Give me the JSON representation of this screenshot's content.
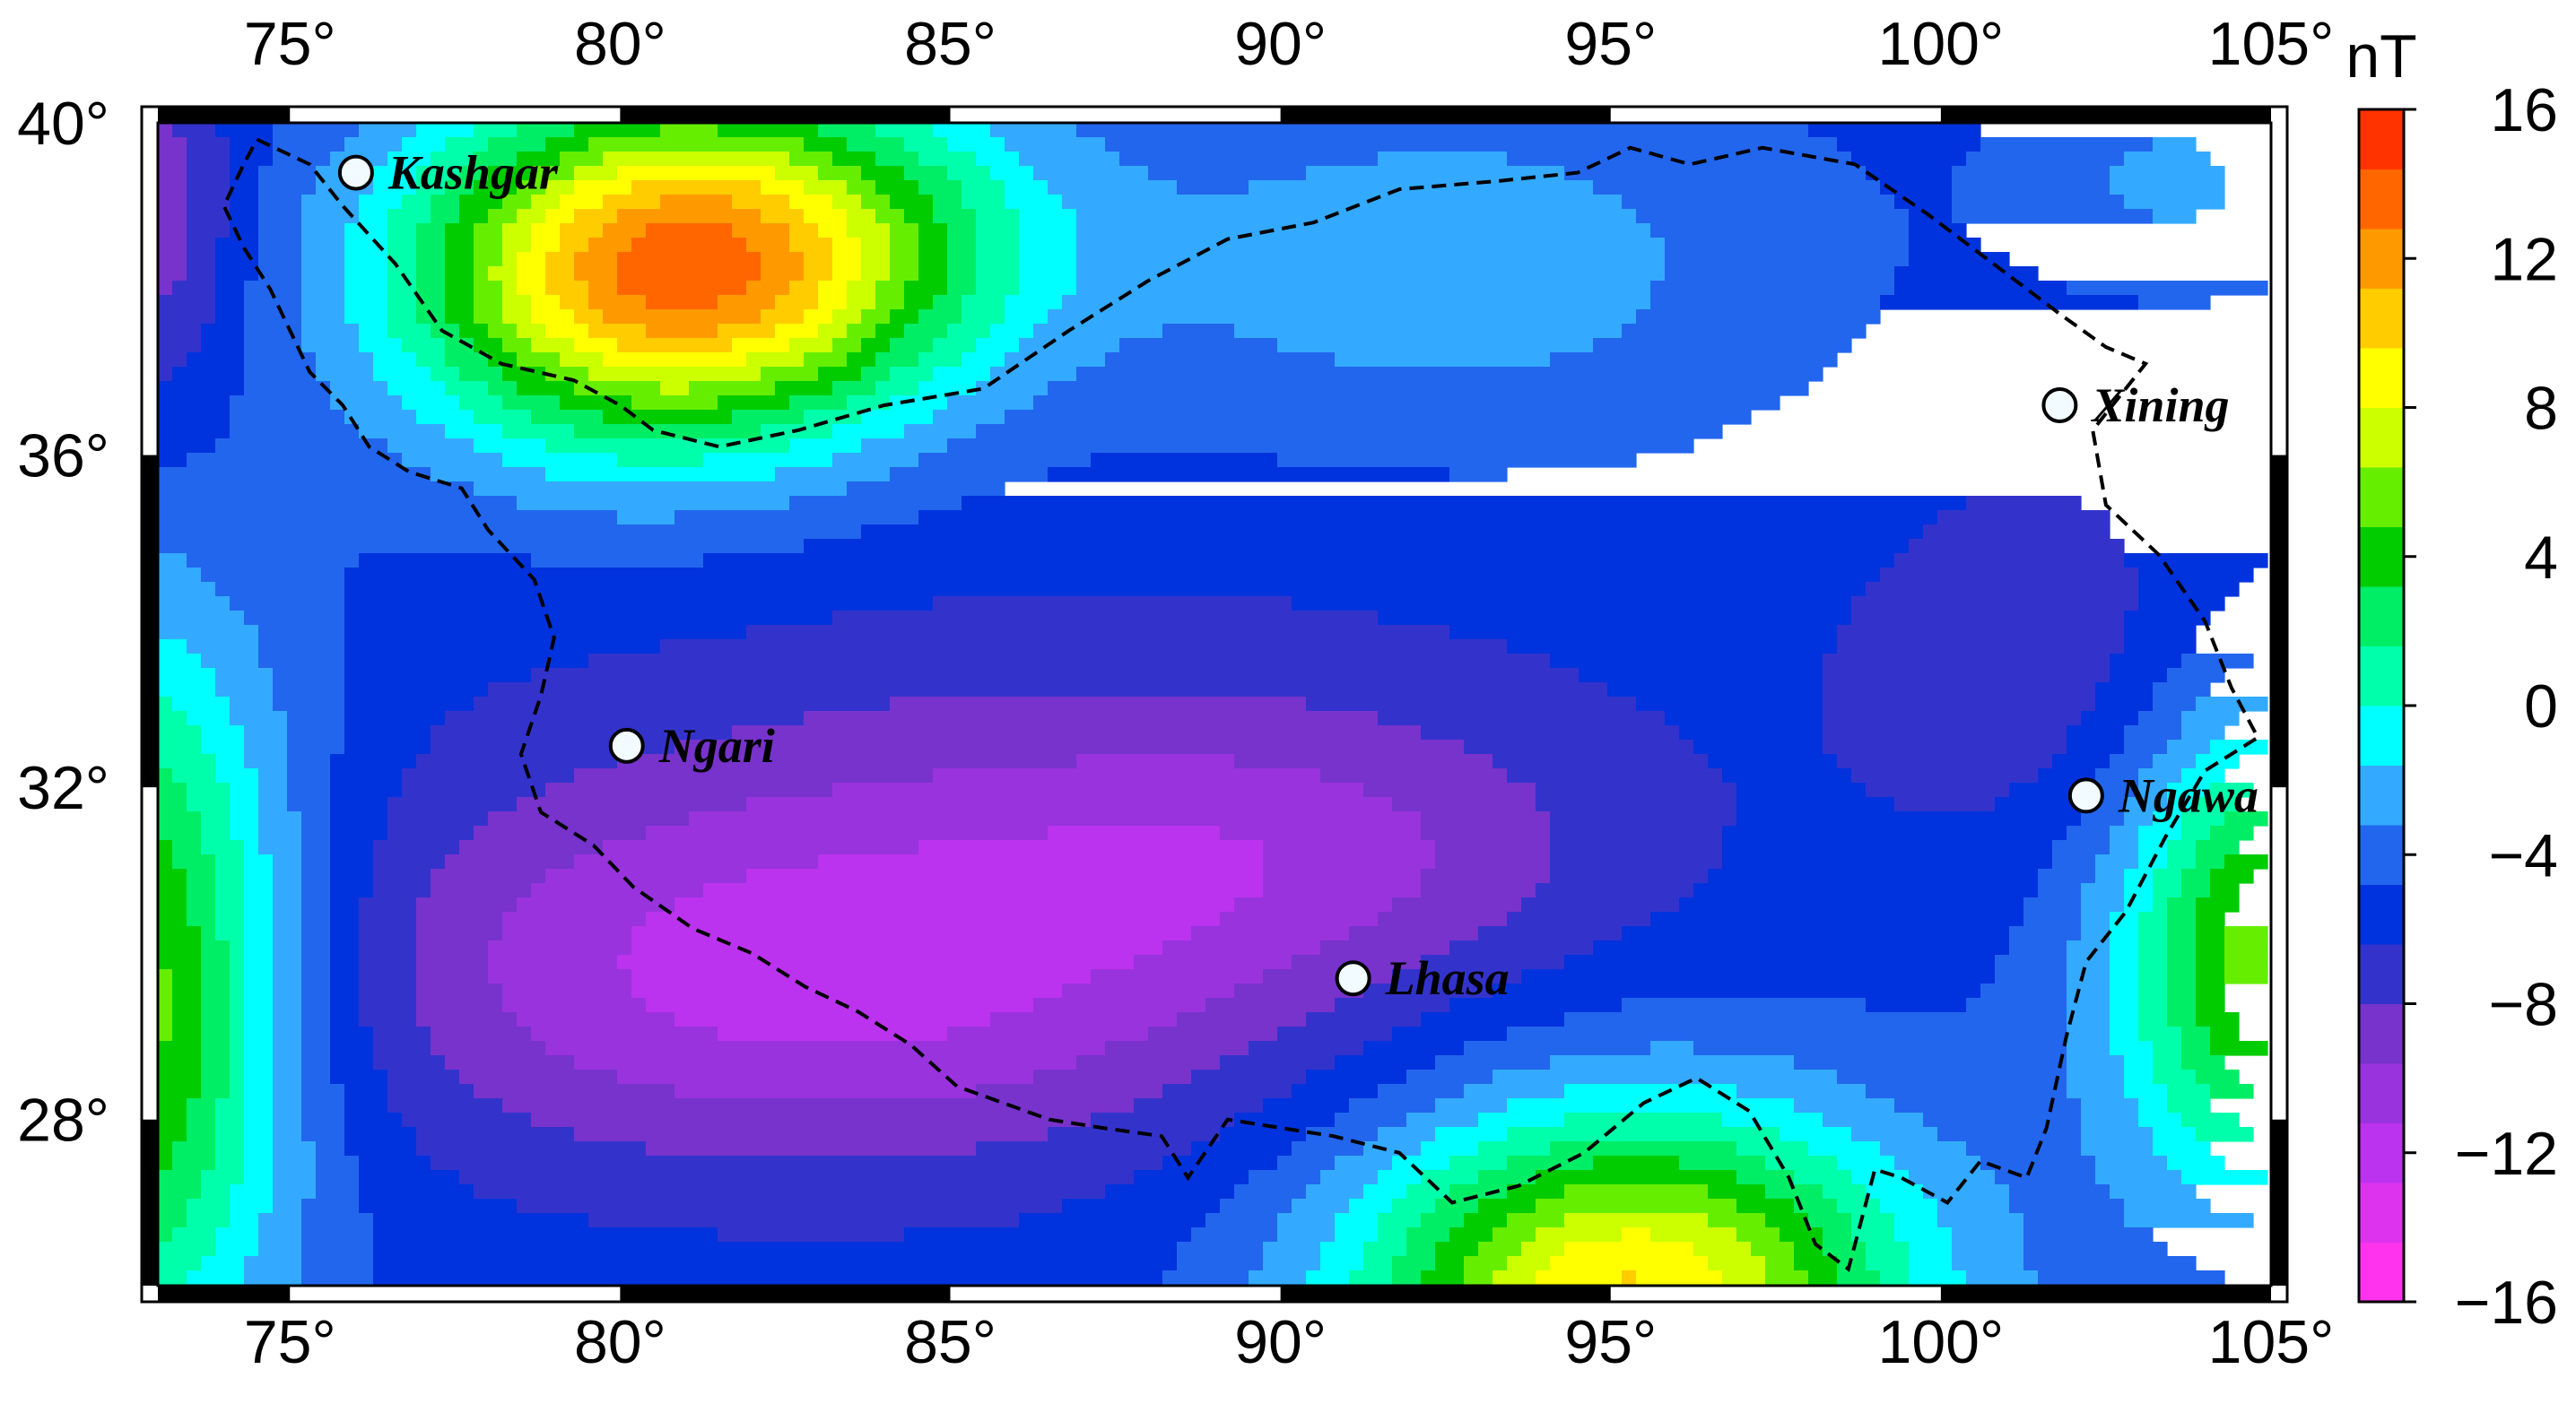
{
  "map": {
    "lon_range": [
      73,
      105
    ],
    "lat_range": [
      26,
      40
    ],
    "lon_ticks": [
      "75°",
      "80°",
      "85°",
      "90°",
      "95°",
      "100°",
      "105°"
    ],
    "lat_ticks": [
      "40°",
      "36°",
      "32°",
      "28°"
    ],
    "frame_style": "alternating black/white graticule border"
  },
  "places": [
    {
      "name": "Kashgar",
      "lon": 76.0,
      "lat": 39.4
    },
    {
      "name": "Xining",
      "lon": 101.8,
      "lat": 36.6
    },
    {
      "name": "Ngari",
      "lon": 80.1,
      "lat": 32.5
    },
    {
      "name": "Ngawa",
      "lon": 102.2,
      "lat": 31.9
    },
    {
      "name": "Lhasa",
      "lon": 91.1,
      "lat": 29.7
    }
  ],
  "colorbar": {
    "unit": "nT",
    "tick_labels": [
      "16",
      "12",
      "8",
      "4",
      "0",
      "−4",
      "−8",
      "−12",
      "−16"
    ],
    "range": [
      -16,
      16
    ],
    "step": 2,
    "colors": [
      "#ff33ee",
      "#dd33ee",
      "#bb33ee",
      "#9933dd",
      "#7733cc",
      "#3333cc",
      "#0033dd",
      "#2266ee",
      "#33aaff",
      "#00ffff",
      "#00ffaa",
      "#00ee66",
      "#00cc00",
      "#66ee00",
      "#ccff00",
      "#ffff00",
      "#ffcc00",
      "#ff9900",
      "#ff6600",
      "#ff3300"
    ]
  },
  "contour_field": {
    "note": "anomaly values in nT estimated from contour bands",
    "blobs": [
      {
        "lon": 80.5,
        "lat": 38.2,
        "amp": 21,
        "rx": 3.8,
        "ry": 2.1
      },
      {
        "lon": 83.5,
        "lat": 38.6,
        "amp": 6,
        "rx": 3.5,
        "ry": 1.8
      },
      {
        "lon": 95.3,
        "lat": 25.8,
        "amp": 19,
        "rx": 4.2,
        "ry": 2.3
      },
      {
        "lon": 72.5,
        "lat": 29.5,
        "amp": 15,
        "rx": 2.6,
        "ry": 4.2
      },
      {
        "lon": 105.3,
        "lat": 30.0,
        "amp": 15,
        "rx": 2.6,
        "ry": 3.0
      },
      {
        "lon": 92.5,
        "lat": 38.3,
        "amp": 4,
        "rx": 5.0,
        "ry": 2.0
      },
      {
        "lon": 103.5,
        "lat": 39.3,
        "amp": 3,
        "rx": 2.2,
        "ry": 1.2
      },
      {
        "lon": 83.0,
        "lat": 29.8,
        "amp": -8.5,
        "rx": 7.5,
        "ry": 2.4
      },
      {
        "lon": 90.5,
        "lat": 31.2,
        "amp": -4,
        "rx": 5.0,
        "ry": 1.6
      },
      {
        "lon": 87.0,
        "lat": 33.0,
        "amp": -2,
        "rx": 9.0,
        "ry": 2.0
      },
      {
        "lon": 101.5,
        "lat": 33.5,
        "amp": -3,
        "rx": 3.0,
        "ry": 2.4
      },
      {
        "lon": 73.0,
        "lat": 38.8,
        "amp": -5,
        "rx": 1.2,
        "ry": 2.2
      }
    ],
    "background": -2.6
  },
  "border_lonlat": [
    [
      74.5,
      39.8
    ],
    [
      75.3,
      39.5
    ],
    [
      75.8,
      39.0
    ],
    [
      76.6,
      38.3
    ],
    [
      77.3,
      37.5
    ],
    [
      78.2,
      37.1
    ],
    [
      79.3,
      36.9
    ],
    [
      80.0,
      36.6
    ],
    [
      80.5,
      36.3
    ],
    [
      81.5,
      36.1
    ],
    [
      82.7,
      36.3
    ],
    [
      84.0,
      36.6
    ],
    [
      85.5,
      36.8
    ],
    [
      86.8,
      37.5
    ],
    [
      88.0,
      38.1
    ],
    [
      89.2,
      38.6
    ],
    [
      90.5,
      38.8
    ],
    [
      91.8,
      39.2
    ],
    [
      93.3,
      39.3
    ],
    [
      94.5,
      39.4
    ],
    [
      95.3,
      39.7
    ],
    [
      96.2,
      39.5
    ],
    [
      97.3,
      39.7
    ],
    [
      98.7,
      39.5
    ],
    [
      99.8,
      38.9
    ],
    [
      100.8,
      38.3
    ],
    [
      101.8,
      37.7
    ],
    [
      102.5,
      37.3
    ],
    [
      103.1,
      37.1
    ],
    [
      102.3,
      36.3
    ],
    [
      102.5,
      35.4
    ],
    [
      103.3,
      34.8
    ],
    [
      104.0,
      34.0
    ],
    [
      104.4,
      33.2
    ],
    [
      104.8,
      32.6
    ],
    [
      104.0,
      32.2
    ],
    [
      103.4,
      31.4
    ],
    [
      102.8,
      30.5
    ],
    [
      102.2,
      29.9
    ],
    [
      101.9,
      29.0
    ],
    [
      101.6,
      27.9
    ],
    [
      101.3,
      27.3
    ],
    [
      100.6,
      27.5
    ],
    [
      100.1,
      27.0
    ],
    [
      99.4,
      27.3
    ],
    [
      99.0,
      27.4
    ],
    [
      98.6,
      26.2
    ],
    [
      98.1,
      26.5
    ],
    [
      97.7,
      27.3
    ],
    [
      97.1,
      28.1
    ],
    [
      96.3,
      28.5
    ],
    [
      95.5,
      28.2
    ],
    [
      94.6,
      27.6
    ],
    [
      93.6,
      27.2
    ],
    [
      92.6,
      27.0
    ],
    [
      91.8,
      27.6
    ],
    [
      90.8,
      27.8
    ],
    [
      90.0,
      27.9
    ],
    [
      89.2,
      28.0
    ],
    [
      88.6,
      27.3
    ],
    [
      88.2,
      27.8
    ],
    [
      87.3,
      27.9
    ],
    [
      86.5,
      28.0
    ],
    [
      85.8,
      28.2
    ],
    [
      85.1,
      28.4
    ],
    [
      84.4,
      28.9
    ],
    [
      83.6,
      29.3
    ],
    [
      82.8,
      29.6
    ],
    [
      82.0,
      30.0
    ],
    [
      81.1,
      30.3
    ],
    [
      80.2,
      30.8
    ],
    [
      79.6,
      31.3
    ],
    [
      78.8,
      31.7
    ],
    [
      78.5,
      32.4
    ],
    [
      78.8,
      33.1
    ],
    [
      79.0,
      33.8
    ],
    [
      78.7,
      34.5
    ],
    [
      78.0,
      35.1
    ],
    [
      77.6,
      35.6
    ],
    [
      76.8,
      35.8
    ],
    [
      76.2,
      36.1
    ],
    [
      75.8,
      36.6
    ],
    [
      75.3,
      37.0
    ],
    [
      75.0,
      37.5
    ],
    [
      74.7,
      38.0
    ],
    [
      74.3,
      38.5
    ],
    [
      74.0,
      39.0
    ],
    [
      74.3,
      39.5
    ],
    [
      74.5,
      39.8
    ]
  ]
}
